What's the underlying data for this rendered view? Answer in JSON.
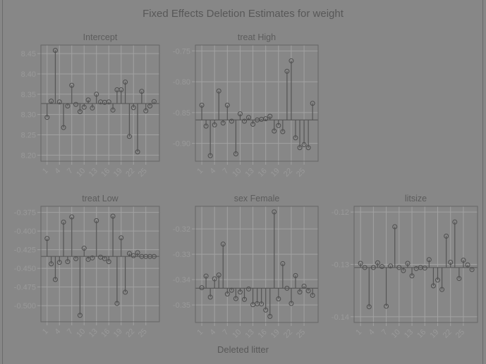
{
  "chart_data": {
    "type": "scatter",
    "title": "Fixed Effects Deletion Estimates for weight",
    "xlabel": "Deleted litter",
    "x_ticks": [
      "1",
      "4",
      "7",
      "10",
      "13",
      "16",
      "19",
      "22",
      "25"
    ],
    "x": [
      1,
      2,
      3,
      4,
      5,
      6,
      7,
      8,
      9,
      10,
      11,
      12,
      13,
      14,
      15,
      16,
      17,
      18,
      19,
      20,
      21,
      22,
      23,
      24,
      25,
      26,
      27
    ],
    "panels": [
      {
        "name": "Intercept",
        "baseline": 8.327,
        "ylim": [
          8.185,
          8.471
        ],
        "y_ticks": [
          "8.20",
          "8.25",
          "8.30",
          "8.35",
          "8.40",
          "8.45"
        ],
        "values": [
          8.293,
          8.333,
          8.458,
          8.331,
          8.268,
          8.321,
          8.372,
          8.325,
          8.307,
          8.318,
          8.336,
          8.316,
          8.35,
          8.331,
          8.33,
          8.331,
          8.311,
          8.361,
          8.361,
          8.38,
          8.246,
          8.317,
          8.208,
          8.357,
          8.309,
          8.321,
          8.332
        ]
      },
      {
        "name": "treat High",
        "baseline": -0.862,
        "ylim": [
          -0.929,
          -0.7405
        ],
        "y_ticks": [
          "-0.90",
          "-0.85",
          "-0.80",
          "-0.75"
        ],
        "values": [
          -0.838,
          -0.872,
          -0.92,
          -0.87,
          -0.815,
          -0.867,
          -0.838,
          -0.864,
          -0.917,
          -0.852,
          -0.864,
          -0.858,
          -0.869,
          -0.862,
          -0.861,
          -0.86,
          -0.856,
          -0.88,
          -0.871,
          -0.881,
          -0.783,
          -0.766,
          -0.891,
          -0.907,
          -0.902,
          -0.907,
          -0.835
        ]
      },
      {
        "name": "treat Low",
        "baseline": -0.434,
        "ylim": [
          -0.5216,
          -0.3668
        ],
        "y_ticks": [
          "-0.500",
          "-0.475",
          "-0.450",
          "-0.425",
          "-0.400",
          "-0.375"
        ],
        "values": [
          -0.41,
          -0.444,
          -0.465,
          -0.442,
          -0.388,
          -0.441,
          -0.381,
          -0.437,
          -0.513,
          -0.423,
          -0.438,
          -0.436,
          -0.386,
          -0.435,
          -0.437,
          -0.441,
          -0.38,
          -0.497,
          -0.409,
          -0.482,
          -0.43,
          -0.433,
          -0.429,
          -0.434,
          -0.434,
          -0.434,
          -0.434
        ]
      },
      {
        "name": "sex Female",
        "baseline": -0.3434,
        "ylim": [
          -0.3569,
          -0.3111
        ],
        "y_ticks": [
          "-0.35",
          "-0.34",
          "-0.33",
          "-0.32"
        ],
        "values": [
          -0.3432,
          -0.3386,
          -0.3469,
          -0.3397,
          -0.3382,
          -0.326,
          -0.3457,
          -0.3442,
          -0.3475,
          -0.3449,
          -0.3478,
          -0.3437,
          -0.3499,
          -0.3495,
          -0.3496,
          -0.352,
          -0.3545,
          -0.3133,
          -0.3476,
          -0.3337,
          -0.3434,
          -0.3494,
          -0.3384,
          -0.3449,
          -0.3426,
          -0.3444,
          -0.3462
        ]
      },
      {
        "name": "litsize",
        "baseline": -0.1306,
        "ylim": [
          -0.1411,
          -0.1189
        ],
        "y_ticks": [
          "-0.14",
          "-0.13",
          "-0.12"
        ],
        "values": [
          -0.1298,
          -0.1306,
          -0.1381,
          -0.1306,
          -0.1297,
          -0.1304,
          -0.138,
          -0.1303,
          -0.1228,
          -0.1306,
          -0.1312,
          -0.1298,
          -0.1322,
          -0.1308,
          -0.1306,
          -0.1307,
          -0.1291,
          -0.1341,
          -0.133,
          -0.1348,
          -0.1246,
          -0.1296,
          -0.1219,
          -0.1327,
          -0.1292,
          -0.1301,
          -0.131
        ]
      }
    ],
    "xlim": [
      -0.5,
      28.3
    ],
    "grid": true,
    "colors": {
      "background": "#878787",
      "points": "#4e4e4e",
      "grid": "#a2a2a2",
      "text": "#585858"
    }
  }
}
